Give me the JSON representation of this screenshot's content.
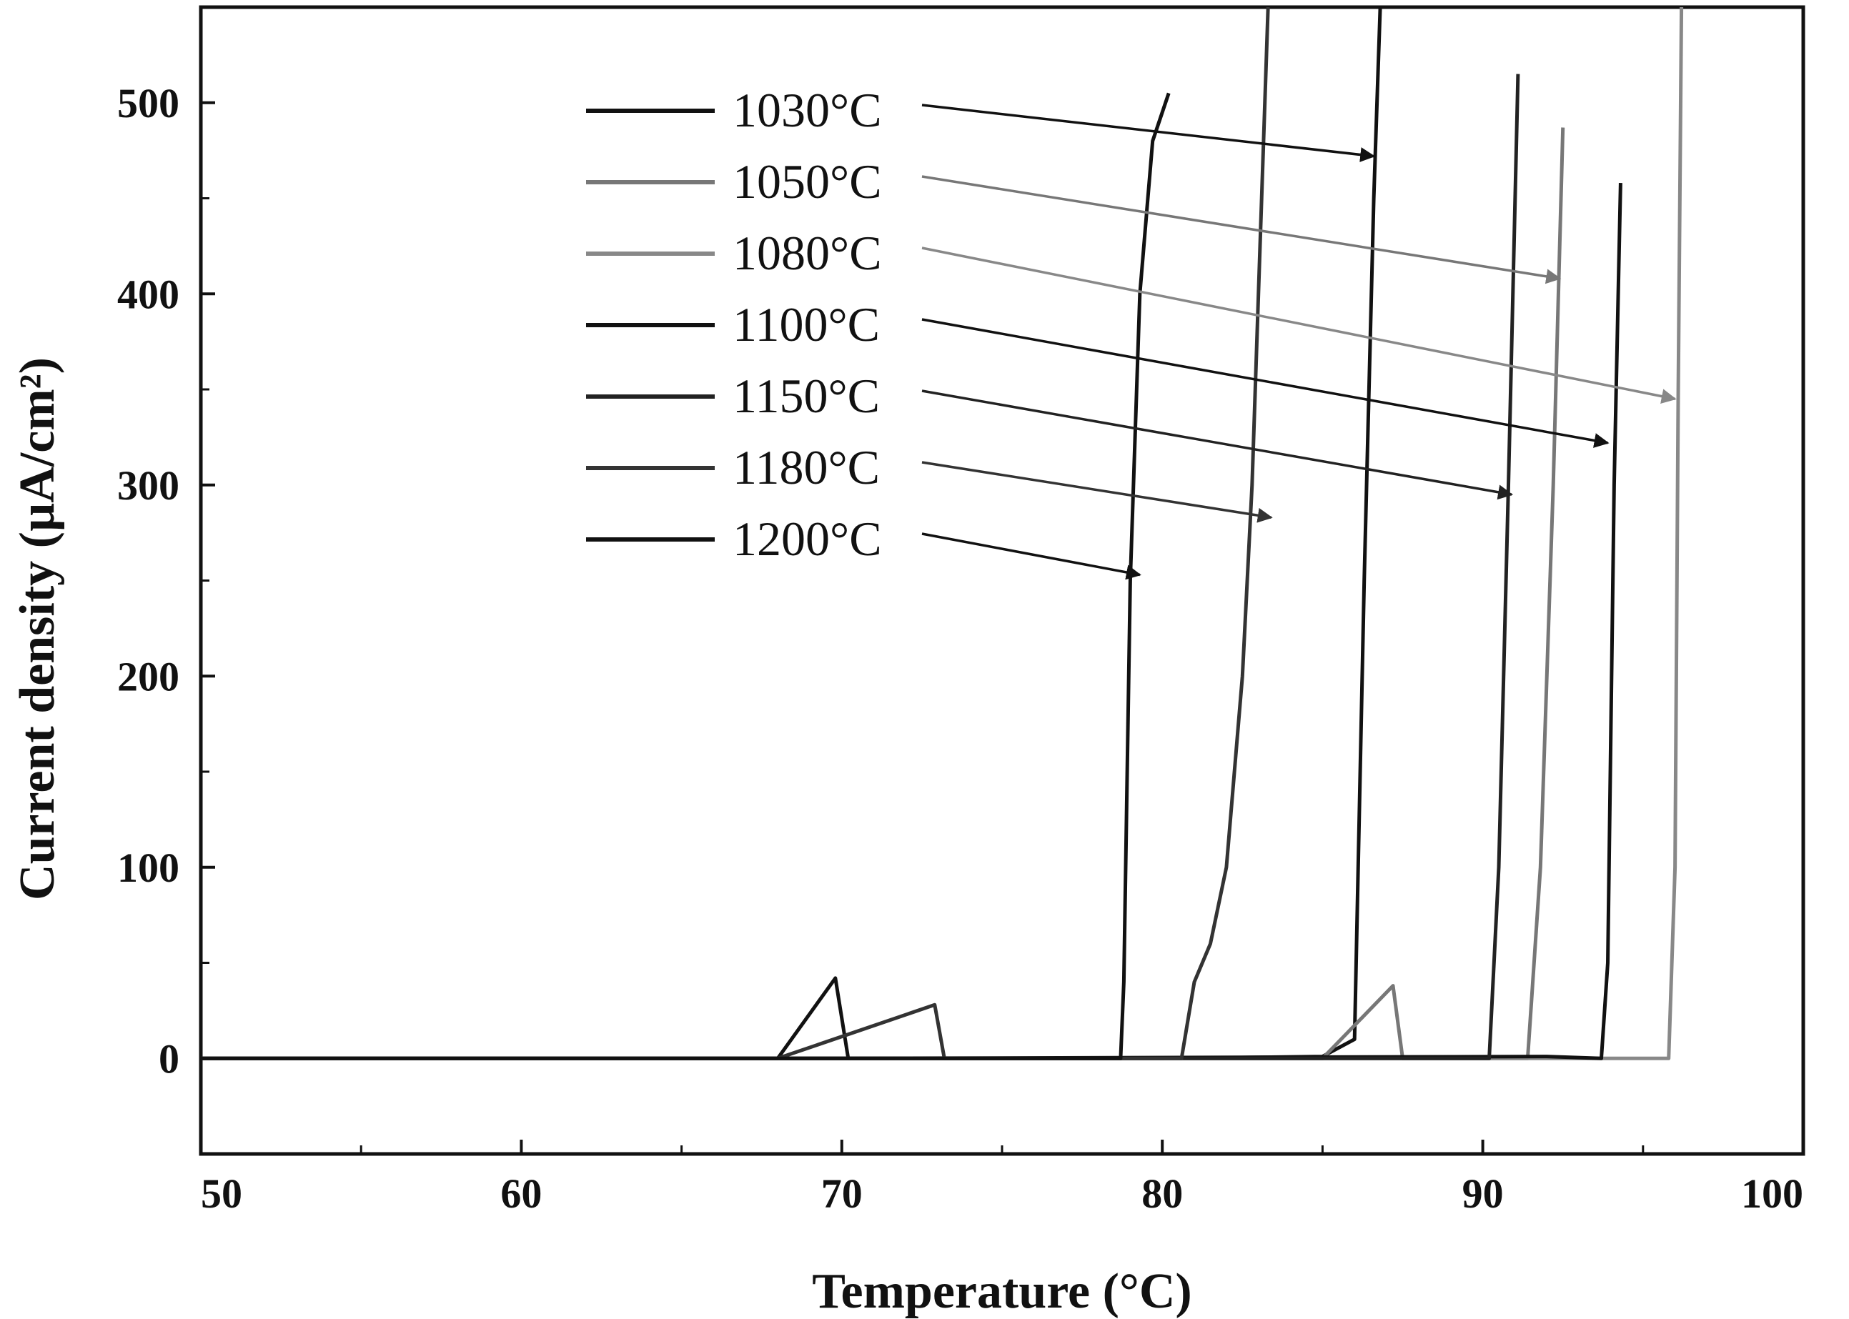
{
  "chart_data": {
    "type": "line",
    "xlabel": "Temperature (°C)",
    "ylabel": "Current density (µA/cm²)",
    "xlim": [
      50,
      100
    ],
    "ylim": [
      -50,
      550
    ],
    "x_ticks": [
      50,
      60,
      70,
      80,
      90,
      100
    ],
    "y_ticks": [
      0,
      100,
      200,
      300,
      400,
      500
    ],
    "grid": false,
    "legend_position": "top-center",
    "series": [
      {
        "name": "1030°C",
        "color": "#111111",
        "x": [
          50,
          60,
          68,
          69.8,
          70.2,
          74,
          80,
          85,
          86.0,
          86.3,
          86.6,
          86.8
        ],
        "y": [
          0,
          0,
          0,
          42,
          0,
          0,
          0,
          1,
          10,
          250,
          450,
          550
        ],
        "arrow_target": [
          86.6,
          472
        ]
      },
      {
        "name": "1050°C",
        "color": "#777777",
        "x": [
          50,
          70,
          85,
          87.2,
          87.5,
          90,
          91.4,
          91.8,
          92.2,
          92.5
        ],
        "y": [
          0,
          0,
          0,
          38,
          0,
          0,
          0,
          100,
          300,
          487
        ],
        "arrow_target": [
          92.4,
          408
        ]
      },
      {
        "name": "1080°C",
        "color": "#888888",
        "x": [
          50,
          70,
          90,
          95.8,
          96.0,
          96.1,
          96.2
        ],
        "y": [
          0,
          0,
          0,
          0,
          100,
          350,
          550
        ],
        "arrow_target": [
          96.0,
          345
        ]
      },
      {
        "name": "1100°C",
        "color": "#111111",
        "x": [
          50,
          70,
          92,
          93.7,
          93.9,
          94.1,
          94.3
        ],
        "y": [
          0,
          0,
          1,
          0,
          50,
          300,
          458
        ],
        "arrow_target": [
          93.9,
          322
        ]
      },
      {
        "name": "1150°C",
        "color": "#222222",
        "x": [
          50,
          70,
          88,
          90.2,
          90.5,
          90.8,
          91.1
        ],
        "y": [
          0,
          0,
          0,
          0,
          100,
          300,
          515
        ],
        "arrow_target": [
          90.9,
          295
        ]
      },
      {
        "name": "1180°C",
        "color": "#333333",
        "x": [
          50,
          68,
          72.9,
          73.2,
          80,
          80.6,
          81.0,
          81.5,
          82.0,
          82.5,
          82.8,
          83.1,
          83.3
        ],
        "y": [
          0,
          0,
          28,
          0,
          0,
          0,
          40,
          60,
          100,
          200,
          300,
          450,
          550
        ],
        "arrow_target": [
          83.4,
          283
        ]
      },
      {
        "name": "1200°C",
        "color": "#111111",
        "x": [
          50,
          70,
          78.7,
          78.8,
          79.0,
          79.3,
          79.7,
          80.2
        ],
        "y": [
          0,
          0,
          0,
          40,
          250,
          400,
          480,
          505
        ],
        "arrow_target": [
          79.3,
          253
        ]
      }
    ]
  }
}
